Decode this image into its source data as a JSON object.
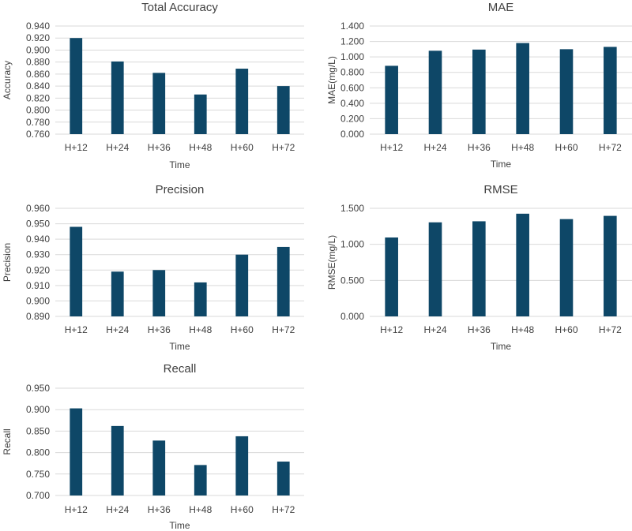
{
  "chart_data": [
    {
      "type": "bar",
      "title": "Total Accuracy",
      "xlabel": "Time",
      "ylabel": "Accuracy",
      "categories": [
        "H+12",
        "H+24",
        "H+36",
        "H+48",
        "H+60",
        "H+72"
      ],
      "values": [
        0.92,
        0.881,
        0.862,
        0.826,
        0.869,
        0.84
      ],
      "ylim": [
        0.76,
        0.94
      ],
      "yticks": [
        "0.760",
        "0.780",
        "0.800",
        "0.820",
        "0.840",
        "0.860",
        "0.880",
        "0.900",
        "0.920",
        "0.940"
      ],
      "grid": true,
      "color": "#0e4767"
    },
    {
      "type": "bar",
      "title": "MAE",
      "xlabel": "Time",
      "ylabel": "MAE(mg/L)",
      "categories": [
        "H+12",
        "H+24",
        "H+36",
        "H+48",
        "H+60",
        "H+72"
      ],
      "values": [
        0.885,
        1.08,
        1.095,
        1.18,
        1.1,
        1.13
      ],
      "ylim": [
        0.0,
        1.4
      ],
      "yticks": [
        "0.000",
        "0.200",
        "0.400",
        "0.600",
        "0.800",
        "1.000",
        "1.200",
        "1.400"
      ],
      "grid": true,
      "color": "#0e4767"
    },
    {
      "type": "bar",
      "title": "Precision",
      "xlabel": "Time",
      "ylabel": "Precision",
      "categories": [
        "H+12",
        "H+24",
        "H+36",
        "H+48",
        "H+60",
        "H+72"
      ],
      "values": [
        0.948,
        0.919,
        0.92,
        0.912,
        0.93,
        0.935
      ],
      "ylim": [
        0.89,
        0.96
      ],
      "yticks": [
        "0.890",
        "0.900",
        "0.910",
        "0.920",
        "0.930",
        "0.940",
        "0.950",
        "0.960"
      ],
      "grid": true,
      "color": "#0e4767"
    },
    {
      "type": "bar",
      "title": "RMSE",
      "xlabel": "Time",
      "ylabel": "RMSE(mg/L)",
      "categories": [
        "H+12",
        "H+24",
        "H+36",
        "H+48",
        "H+60",
        "H+72"
      ],
      "values": [
        1.095,
        1.305,
        1.32,
        1.425,
        1.35,
        1.395
      ],
      "ylim": [
        0.0,
        1.5
      ],
      "yticks": [
        "0.000",
        "0.500",
        "1.000",
        "1.500"
      ],
      "grid": true,
      "color": "#0e4767"
    },
    {
      "type": "bar",
      "title": "Recall",
      "xlabel": "Time",
      "ylabel": "Recall",
      "categories": [
        "H+12",
        "H+24",
        "H+36",
        "H+48",
        "H+60",
        "H+72"
      ],
      "values": [
        0.903,
        0.862,
        0.828,
        0.771,
        0.838,
        0.779
      ],
      "ylim": [
        0.7,
        0.95
      ],
      "yticks": [
        "0.700",
        "0.750",
        "0.800",
        "0.850",
        "0.900",
        "0.950"
      ],
      "grid": true,
      "color": "#0e4767"
    }
  ]
}
